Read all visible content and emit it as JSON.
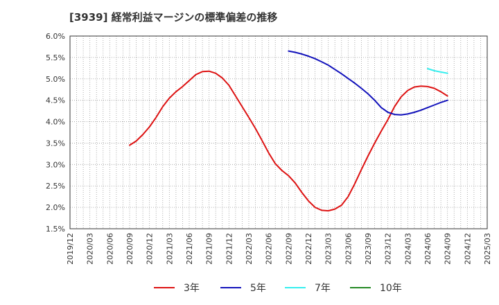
{
  "chart_data": {
    "type": "line",
    "title": "[3939]  経常利益マージンの標準偏差の推移",
    "ylim": [
      1.5,
      6.0
    ],
    "y_ticks": [
      1.5,
      2.0,
      2.5,
      3.0,
      3.5,
      4.0,
      4.5,
      5.0,
      5.5,
      6.0
    ],
    "y_tick_labels": [
      "1.5%",
      "2.0%",
      "2.5%",
      "3.0%",
      "3.5%",
      "4.0%",
      "4.5%",
      "5.0%",
      "5.5%",
      "6.0%"
    ],
    "x_tick_labels": [
      "2019/12",
      "2020/03",
      "2020/06",
      "2020/09",
      "2020/12",
      "2021/03",
      "2021/06",
      "2021/09",
      "2021/12",
      "2022/03",
      "2022/06",
      "2022/09",
      "2022/12",
      "2023/03",
      "2023/06",
      "2023/09",
      "2023/12",
      "2024/03",
      "2024/06",
      "2024/09",
      "2024/12",
      "2025/03"
    ],
    "grid": true,
    "legend_position": "bottom",
    "series": [
      {
        "name": "3年",
        "color": "#dd1111",
        "points": [
          [
            "2020/09",
            3.45
          ],
          [
            "2020/10",
            3.55
          ],
          [
            "2020/11",
            3.7
          ],
          [
            "2020/12",
            3.88
          ],
          [
            "2021/01",
            4.1
          ],
          [
            "2021/02",
            4.35
          ],
          [
            "2021/03",
            4.55
          ],
          [
            "2021/04",
            4.7
          ],
          [
            "2021/05",
            4.82
          ],
          [
            "2021/06",
            4.96
          ],
          [
            "2021/07",
            5.1
          ],
          [
            "2021/08",
            5.17
          ],
          [
            "2021/09",
            5.18
          ],
          [
            "2021/10",
            5.13
          ],
          [
            "2021/11",
            5.02
          ],
          [
            "2021/12",
            4.85
          ],
          [
            "2022/01",
            4.6
          ],
          [
            "2022/02",
            4.35
          ],
          [
            "2022/03",
            4.1
          ],
          [
            "2022/04",
            3.84
          ],
          [
            "2022/05",
            3.56
          ],
          [
            "2022/06",
            3.27
          ],
          [
            "2022/07",
            3.02
          ],
          [
            "2022/08",
            2.86
          ],
          [
            "2022/09",
            2.74
          ],
          [
            "2022/10",
            2.57
          ],
          [
            "2022/11",
            2.35
          ],
          [
            "2022/12",
            2.15
          ],
          [
            "2023/01",
            2.0
          ],
          [
            "2023/02",
            1.93
          ],
          [
            "2023/03",
            1.92
          ],
          [
            "2023/04",
            1.96
          ],
          [
            "2023/05",
            2.05
          ],
          [
            "2023/06",
            2.25
          ],
          [
            "2023/07",
            2.55
          ],
          [
            "2023/08",
            2.88
          ],
          [
            "2023/09",
            3.2
          ],
          [
            "2023/10",
            3.5
          ],
          [
            "2023/11",
            3.78
          ],
          [
            "2023/12",
            4.05
          ],
          [
            "2024/01",
            4.35
          ],
          [
            "2024/02",
            4.58
          ],
          [
            "2024/03",
            4.73
          ],
          [
            "2024/04",
            4.81
          ],
          [
            "2024/05",
            4.83
          ],
          [
            "2024/06",
            4.82
          ],
          [
            "2024/07",
            4.78
          ],
          [
            "2024/08",
            4.7
          ],
          [
            "2024/09",
            4.6
          ]
        ]
      },
      {
        "name": "5年",
        "color": "#1111bb",
        "points": [
          [
            "2022/09",
            5.65
          ],
          [
            "2022/10",
            5.62
          ],
          [
            "2022/11",
            5.58
          ],
          [
            "2022/12",
            5.53
          ],
          [
            "2023/01",
            5.47
          ],
          [
            "2023/02",
            5.4
          ],
          [
            "2023/03",
            5.32
          ],
          [
            "2023/04",
            5.22
          ],
          [
            "2023/05",
            5.12
          ],
          [
            "2023/06",
            5.01
          ],
          [
            "2023/07",
            4.9
          ],
          [
            "2023/08",
            4.78
          ],
          [
            "2023/09",
            4.65
          ],
          [
            "2023/10",
            4.5
          ],
          [
            "2023/11",
            4.33
          ],
          [
            "2023/12",
            4.22
          ],
          [
            "2024/01",
            4.17
          ],
          [
            "2024/02",
            4.16
          ],
          [
            "2024/03",
            4.18
          ],
          [
            "2024/04",
            4.22
          ],
          [
            "2024/05",
            4.27
          ],
          [
            "2024/06",
            4.33
          ],
          [
            "2024/07",
            4.39
          ],
          [
            "2024/08",
            4.45
          ],
          [
            "2024/09",
            4.5
          ]
        ]
      },
      {
        "name": "7年",
        "color": "#33eeee",
        "points": [
          [
            "2024/06",
            5.24
          ],
          [
            "2024/07",
            5.19
          ],
          [
            "2024/08",
            5.16
          ],
          [
            "2024/09",
            5.13
          ]
        ]
      },
      {
        "name": "10年",
        "color": "#228822",
        "points": []
      }
    ]
  }
}
